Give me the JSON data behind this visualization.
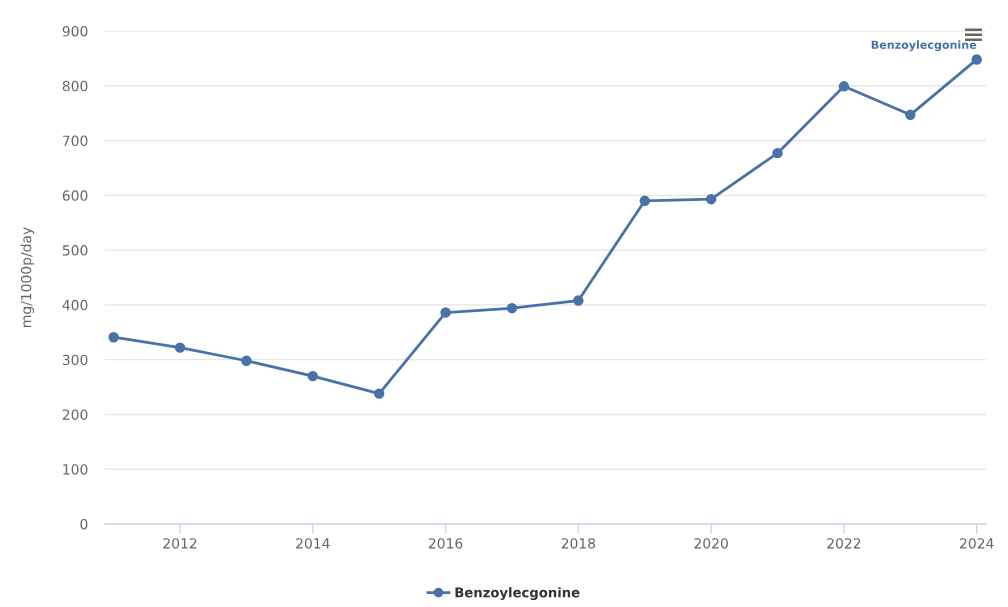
{
  "chart_data": {
    "type": "line",
    "ylabel": "mg/1000p/day",
    "x": [
      2011,
      2012,
      2013,
      2014,
      2015,
      2016,
      2017,
      2018,
      2019,
      2020,
      2021,
      2022,
      2023,
      2024
    ],
    "series": [
      {
        "name": "Benzoylecgonine",
        "color": "#4a72a8",
        "values": [
          341,
          322,
          298,
          270,
          238,
          386,
          394,
          408,
          590,
          593,
          677,
          799,
          747,
          848
        ]
      }
    ],
    "xlim": [
      2010.87,
      2024.14
    ],
    "xticks": [
      2012,
      2014,
      2016,
      2018,
      2020,
      2022,
      2024
    ],
    "ylim": [
      0,
      900
    ],
    "yticks": [
      0,
      100,
      200,
      300,
      400,
      500,
      600,
      700,
      800,
      900
    ],
    "grid": "y",
    "legend": "bottom",
    "marker": "circle",
    "line_style": "solid"
  }
}
